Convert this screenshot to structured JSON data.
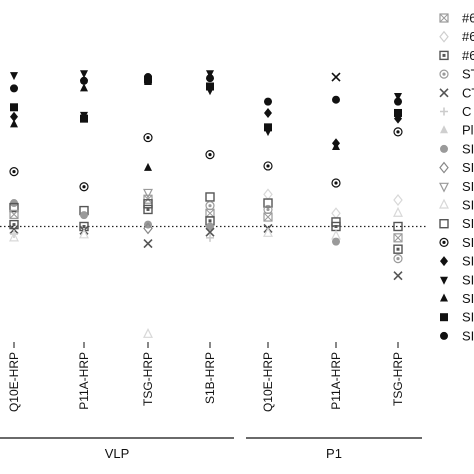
{
  "chart_data": {
    "type": "scatter",
    "categories": [
      "Q10E-HRP",
      "P11A-HRP",
      "TSG-HRP",
      "S1B-HRP",
      "Q10E-HRP",
      "P11A-HRP",
      "TSG-HRP"
    ],
    "groups": [
      {
        "label": "VLP",
        "categories": [
          0,
          1,
          2,
          3
        ]
      },
      {
        "label": "P1",
        "categories": [
          4,
          5,
          6
        ]
      }
    ],
    "cutoff_line": {
      "style": "dotted",
      "y": 0
    },
    "ylim": [
      -3.0,
      4.4
    ],
    "grid": false,
    "legend_position": "right",
    "legend": [
      {
        "label": "#6",
        "marker": "boxx",
        "color": "#9a9a9a"
      },
      {
        "label": "#6",
        "marker": "diamond-open",
        "color": "#cfcfcf"
      },
      {
        "label": "#6",
        "marker": "square-dot",
        "color": "#555555"
      },
      {
        "label": "ST",
        "marker": "circle-dot",
        "color": "#9a9a9a"
      },
      {
        "label": "CT",
        "marker": "x",
        "color": "#555555"
      },
      {
        "label": "C",
        "marker": "plus",
        "color": "#cccccc"
      },
      {
        "label": "Pl",
        "marker": "triangle",
        "color": "#cfcfcf"
      },
      {
        "label": "SI",
        "marker": "circle",
        "color": "#9a9a9a"
      },
      {
        "label": "SI",
        "marker": "diamond-open",
        "color": "#888888"
      },
      {
        "label": "SI",
        "marker": "triangle-down-open",
        "color": "#9a9a9a"
      },
      {
        "label": "SI",
        "marker": "triangle-open",
        "color": "#d8d8d8"
      },
      {
        "label": "SI",
        "marker": "square-open",
        "color": "#555555"
      },
      {
        "label": "SI",
        "marker": "circle-dot",
        "color": "#111111"
      },
      {
        "label": "SI",
        "marker": "diamond",
        "color": "#111111"
      },
      {
        "label": "SI",
        "marker": "triangle-down",
        "color": "#111111"
      },
      {
        "label": "SI",
        "marker": "triangle",
        "color": "#111111"
      },
      {
        "label": "SI",
        "marker": "square",
        "color": "#111111"
      },
      {
        "label": "SI",
        "marker": "circle",
        "color": "#111111"
      }
    ],
    "points": [
      {
        "cat": 0,
        "y": 4.0,
        "marker": "triangle-down",
        "color": "#111111"
      },
      {
        "cat": 0,
        "y": 3.65,
        "marker": "circle",
        "color": "#111111"
      },
      {
        "cat": 0,
        "y": 3.15,
        "marker": "square",
        "color": "#111111"
      },
      {
        "cat": 0,
        "y": 2.9,
        "marker": "diamond",
        "color": "#111111"
      },
      {
        "cat": 0,
        "y": 2.7,
        "marker": "triangle",
        "color": "#111111"
      },
      {
        "cat": 0,
        "y": 1.45,
        "marker": "circle-dot",
        "color": "#111111"
      },
      {
        "cat": 0,
        "y": 0.62,
        "marker": "circle",
        "color": "#9a9a9a"
      },
      {
        "cat": 0,
        "y": 0.5,
        "marker": "square-open",
        "color": "#555555"
      },
      {
        "cat": 0,
        "y": 0.32,
        "marker": "boxx",
        "color": "#9a9a9a"
      },
      {
        "cat": 0,
        "y": 0.05,
        "marker": "square-dot",
        "color": "#555555"
      },
      {
        "cat": 0,
        "y": -0.08,
        "marker": "x",
        "color": "#555555"
      },
      {
        "cat": 0,
        "y": -0.2,
        "marker": "plus",
        "color": "#cccccc"
      },
      {
        "cat": 0,
        "y": -0.3,
        "marker": "triangle-open",
        "color": "#d8d8d8"
      },
      {
        "cat": 1,
        "y": 4.05,
        "marker": "triangle-down",
        "color": "#111111"
      },
      {
        "cat": 1,
        "y": 3.85,
        "marker": "circle",
        "color": "#111111"
      },
      {
        "cat": 1,
        "y": 3.65,
        "marker": "triangle",
        "color": "#111111"
      },
      {
        "cat": 1,
        "y": 2.95,
        "marker": "triangle-down",
        "color": "#111111"
      },
      {
        "cat": 1,
        "y": 2.85,
        "marker": "square",
        "color": "#111111"
      },
      {
        "cat": 1,
        "y": 1.05,
        "marker": "circle-dot",
        "color": "#111111"
      },
      {
        "cat": 1,
        "y": 0.42,
        "marker": "square-open",
        "color": "#555555"
      },
      {
        "cat": 1,
        "y": 0.3,
        "marker": "circle",
        "color": "#9a9a9a"
      },
      {
        "cat": 1,
        "y": 0.0,
        "marker": "square-dot",
        "color": "#555555"
      },
      {
        "cat": 1,
        "y": -0.1,
        "marker": "x",
        "color": "#555555"
      },
      {
        "cat": 1,
        "y": -0.22,
        "marker": "triangle-open",
        "color": "#d8d8d8"
      },
      {
        "cat": 2,
        "y": 3.95,
        "marker": "circle",
        "color": "#111111"
      },
      {
        "cat": 2,
        "y": 3.88,
        "marker": "square",
        "color": "#111111"
      },
      {
        "cat": 2,
        "y": 3.82,
        "marker": "triangle",
        "color": "#111111"
      },
      {
        "cat": 2,
        "y": 2.35,
        "marker": "circle-dot",
        "color": "#111111"
      },
      {
        "cat": 2,
        "y": 1.55,
        "marker": "triangle",
        "color": "#111111"
      },
      {
        "cat": 2,
        "y": 0.9,
        "marker": "triangle-down-open",
        "color": "#9a9a9a"
      },
      {
        "cat": 2,
        "y": 0.72,
        "marker": "boxx",
        "color": "#9a9a9a"
      },
      {
        "cat": 2,
        "y": 0.6,
        "marker": "square-open",
        "color": "#555555"
      },
      {
        "cat": 2,
        "y": 0.45,
        "marker": "square-dot",
        "color": "#555555"
      },
      {
        "cat": 2,
        "y": 0.05,
        "marker": "circle",
        "color": "#9a9a9a"
      },
      {
        "cat": 2,
        "y": -0.05,
        "marker": "diamond-open",
        "color": "#888888"
      },
      {
        "cat": 2,
        "y": -0.45,
        "marker": "x",
        "color": "#555555"
      },
      {
        "cat": 2,
        "y": -2.85,
        "marker": "triangle-open",
        "color": "#d8d8d8"
      },
      {
        "cat": 3,
        "y": 4.05,
        "marker": "triangle-down",
        "color": "#111111"
      },
      {
        "cat": 3,
        "y": 3.92,
        "marker": "circle",
        "color": "#111111"
      },
      {
        "cat": 3,
        "y": 3.7,
        "marker": "square",
        "color": "#111111"
      },
      {
        "cat": 3,
        "y": 3.6,
        "marker": "triangle-down",
        "color": "#111111"
      },
      {
        "cat": 3,
        "y": 1.9,
        "marker": "circle-dot",
        "color": "#111111"
      },
      {
        "cat": 3,
        "y": 0.78,
        "marker": "square-open",
        "color": "#555555"
      },
      {
        "cat": 3,
        "y": 0.55,
        "marker": "circle-dot",
        "color": "#9a9a9a"
      },
      {
        "cat": 3,
        "y": 0.35,
        "marker": "boxx",
        "color": "#9a9a9a"
      },
      {
        "cat": 3,
        "y": 0.15,
        "marker": "square-dot",
        "color": "#555555"
      },
      {
        "cat": 3,
        "y": 0.0,
        "marker": "circle",
        "color": "#9a9a9a"
      },
      {
        "cat": 3,
        "y": -0.15,
        "marker": "x",
        "color": "#555555"
      },
      {
        "cat": 3,
        "y": -0.3,
        "marker": "plus",
        "color": "#cccccc"
      },
      {
        "cat": 4,
        "y": 3.3,
        "marker": "circle",
        "color": "#111111"
      },
      {
        "cat": 4,
        "y": 3.0,
        "marker": "diamond",
        "color": "#111111"
      },
      {
        "cat": 4,
        "y": 2.62,
        "marker": "square",
        "color": "#111111"
      },
      {
        "cat": 4,
        "y": 2.52,
        "marker": "triangle-down",
        "color": "#111111"
      },
      {
        "cat": 4,
        "y": 1.6,
        "marker": "circle-dot",
        "color": "#111111"
      },
      {
        "cat": 4,
        "y": 0.85,
        "marker": "diamond-open",
        "color": "#d8d8d8"
      },
      {
        "cat": 4,
        "y": 0.62,
        "marker": "square-open",
        "color": "#555555"
      },
      {
        "cat": 4,
        "y": 0.45,
        "marker": "circle-dot",
        "color": "#9a9a9a"
      },
      {
        "cat": 4,
        "y": 0.25,
        "marker": "boxx",
        "color": "#9a9a9a"
      },
      {
        "cat": 4,
        "y": -0.05,
        "marker": "x",
        "color": "#555555"
      },
      {
        "cat": 4,
        "y": -0.18,
        "marker": "triangle-open",
        "color": "#d8d8d8"
      },
      {
        "cat": 5,
        "y": 3.95,
        "marker": "x",
        "color": "#111111"
      },
      {
        "cat": 5,
        "y": 3.35,
        "marker": "circle",
        "color": "#111111"
      },
      {
        "cat": 5,
        "y": 2.2,
        "marker": "diamond",
        "color": "#111111"
      },
      {
        "cat": 5,
        "y": 2.1,
        "marker": "triangle",
        "color": "#111111"
      },
      {
        "cat": 5,
        "y": 1.15,
        "marker": "circle-dot",
        "color": "#111111"
      },
      {
        "cat": 5,
        "y": 0.35,
        "marker": "diamond-open",
        "color": "#d8d8d8"
      },
      {
        "cat": 5,
        "y": 0.12,
        "marker": "square-open",
        "color": "#555555"
      },
      {
        "cat": 5,
        "y": 0.0,
        "marker": "square-dot",
        "color": "#555555"
      },
      {
        "cat": 5,
        "y": -0.25,
        "marker": "triangle-open",
        "color": "#d8d8d8"
      },
      {
        "cat": 5,
        "y": -0.4,
        "marker": "circle",
        "color": "#9a9a9a"
      },
      {
        "cat": 6,
        "y": 3.45,
        "marker": "triangle-down",
        "color": "#111111"
      },
      {
        "cat": 6,
        "y": 3.3,
        "marker": "circle",
        "color": "#111111"
      },
      {
        "cat": 6,
        "y": 3.0,
        "marker": "square",
        "color": "#111111"
      },
      {
        "cat": 6,
        "y": 2.85,
        "marker": "diamond",
        "color": "#111111"
      },
      {
        "cat": 6,
        "y": 2.5,
        "marker": "circle-dot",
        "color": "#111111"
      },
      {
        "cat": 6,
        "y": 0.7,
        "marker": "diamond-open",
        "color": "#d8d8d8"
      },
      {
        "cat": 6,
        "y": 0.35,
        "marker": "triangle-open",
        "color": "#d8d8d8"
      },
      {
        "cat": 6,
        "y": 0.0,
        "marker": "square-open",
        "color": "#555555"
      },
      {
        "cat": 6,
        "y": -0.3,
        "marker": "boxx",
        "color": "#9a9a9a"
      },
      {
        "cat": 6,
        "y": -0.6,
        "marker": "square-dot",
        "color": "#555555"
      },
      {
        "cat": 6,
        "y": -0.85,
        "marker": "circle-dot",
        "color": "#9a9a9a"
      },
      {
        "cat": 6,
        "y": -1.3,
        "marker": "x",
        "color": "#555555"
      }
    ]
  }
}
